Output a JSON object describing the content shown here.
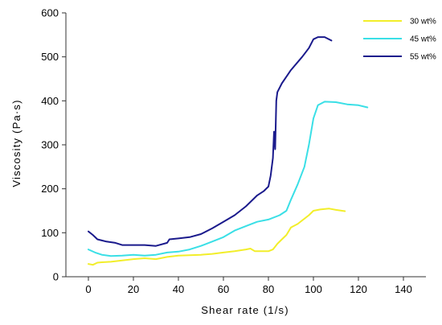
{
  "chart_data": {
    "type": "line",
    "title": "",
    "xlabel": "Shear rate (1/s)",
    "ylabel": "Viscosity (Pa·s)",
    "xlim": [
      -10,
      150
    ],
    "ylim": [
      0,
      600
    ],
    "xticks": [
      "0",
      "20",
      "40",
      "60",
      "80",
      "100",
      "120",
      "140"
    ],
    "yticks": [
      "0",
      "100",
      "200",
      "300",
      "400",
      "500",
      "600"
    ],
    "xtick_values": [
      0,
      20,
      40,
      60,
      80,
      100,
      120,
      140
    ],
    "ytick_values": [
      0,
      100,
      200,
      300,
      400,
      500,
      600
    ],
    "grid": false,
    "legend_position": "top-right",
    "series": [
      {
        "name": "30 wt%",
        "color": "#F2EE2A",
        "x": [
          0,
          2,
          4,
          6,
          10,
          15,
          20,
          25,
          30,
          35,
          40,
          45,
          50,
          55,
          60,
          65,
          70,
          72,
          74,
          80,
          82,
          84,
          86,
          88,
          90,
          93,
          95,
          98,
          100,
          103,
          107,
          110,
          114
        ],
        "y": [
          29,
          27,
          32,
          33,
          34,
          37,
          40,
          42,
          40,
          45,
          48,
          49,
          50,
          52,
          55,
          58,
          62,
          64,
          58,
          58,
          62,
          75,
          85,
          95,
          112,
          120,
          128,
          140,
          150,
          153,
          155,
          152,
          149
        ]
      },
      {
        "name": "45 wt%",
        "color": "#3ADFE6",
        "x": [
          0,
          3,
          6,
          10,
          15,
          20,
          25,
          30,
          35,
          40,
          45,
          50,
          55,
          60,
          65,
          70,
          75,
          80,
          85,
          88,
          90,
          93,
          96,
          98,
          100,
          102,
          105,
          110,
          115,
          120,
          124
        ],
        "y": [
          62,
          55,
          50,
          47,
          48,
          50,
          48,
          50,
          55,
          57,
          62,
          70,
          80,
          90,
          105,
          115,
          125,
          130,
          140,
          150,
          175,
          210,
          250,
          300,
          360,
          390,
          398,
          397,
          392,
          390,
          385
        ]
      },
      {
        "name": "55 wt%",
        "color": "#1A1A8C",
        "x": [
          0,
          2,
          4,
          8,
          12,
          15,
          20,
          25,
          30,
          35,
          36,
          40,
          45,
          50,
          55,
          60,
          65,
          70,
          75,
          78,
          80,
          81,
          82,
          82.5,
          83,
          83.5,
          84,
          86,
          88,
          90,
          95,
          98,
          100,
          102,
          105,
          108
        ],
        "y": [
          103,
          95,
          85,
          80,
          77,
          72,
          72,
          72,
          70,
          77,
          85,
          87,
          90,
          97,
          110,
          125,
          140,
          160,
          185,
          195,
          205,
          230,
          270,
          330,
          290,
          400,
          420,
          440,
          455,
          470,
          500,
          520,
          540,
          545,
          545,
          537
        ]
      }
    ]
  }
}
